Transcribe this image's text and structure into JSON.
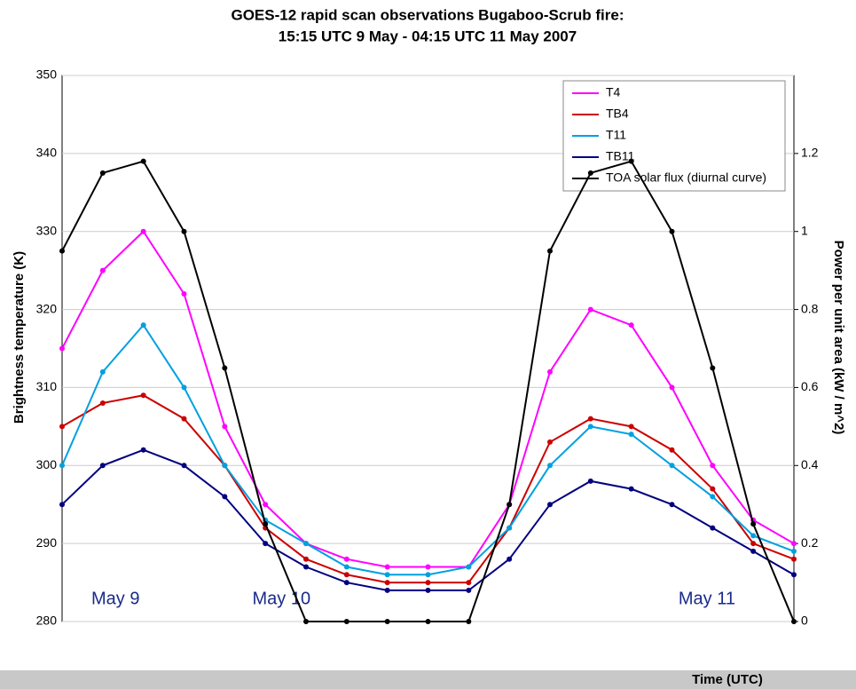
{
  "chart_data": {
    "type": "line",
    "title": "GOES-12 rapid scan observations Bugaboo-Scrub fire:",
    "subtitle": "15:15 UTC 9 May - 04:15 UTC 11 May 2007",
    "x_label": "Time (UTC)",
    "y_label": "Brightness temperature (K)",
    "y2_label": "Power per unit area (kW / m^2)",
    "date_labels": [
      "May 9",
      "May 10",
      "May 11"
    ],
    "x": [
      0,
      2,
      4,
      6,
      8,
      10,
      12,
      14,
      16,
      18,
      20,
      22,
      24,
      26,
      28,
      30,
      32,
      34,
      36
    ],
    "xlim": [
      0,
      36
    ],
    "ylim": [
      280,
      350
    ],
    "yticks": [
      280,
      290,
      300,
      310,
      320,
      330,
      340,
      350
    ],
    "y2lim": [
      0,
      1.4
    ],
    "y2ticks": [
      0,
      0.2,
      0.4,
      0.6,
      0.8,
      1,
      1.2
    ],
    "grid": true,
    "legend": "upper right",
    "series": [
      {
        "name": "T4",
        "color": "#ff00ff",
        "values": [
          315,
          325,
          330,
          322,
          305,
          295,
          290,
          288,
          287,
          287,
          287,
          295,
          312,
          320,
          318,
          310,
          300,
          293,
          290
        ]
      },
      {
        "name": "TB4",
        "color": "#cc0000",
        "values": [
          305,
          308,
          309,
          306,
          300,
          292,
          288,
          286,
          285,
          285,
          285,
          292,
          303,
          306,
          305,
          302,
          297,
          290,
          288
        ]
      },
      {
        "name": "T11",
        "color": "#00a0e0",
        "values": [
          300,
          312,
          318,
          310,
          300,
          293,
          290,
          287,
          286,
          286,
          287,
          292,
          300,
          305,
          304,
          300,
          296,
          291,
          289
        ]
      },
      {
        "name": "TB11",
        "color": "#000080",
        "values": [
          295,
          300,
          302,
          300,
          296,
          290,
          287,
          285,
          284,
          284,
          284,
          288,
          295,
          298,
          297,
          295,
          292,
          289,
          286
        ]
      },
      {
        "name": "TOA solar flux (diurnal curve)",
        "color": "#000000",
        "axis": "y2",
        "values": [
          0.95,
          1.15,
          1.18,
          1.0,
          0.65,
          0.25,
          0,
          0,
          0,
          0,
          0,
          0.3,
          0.95,
          1.15,
          1.18,
          1.0,
          0.65,
          0.25,
          0
        ]
      }
    ]
  }
}
